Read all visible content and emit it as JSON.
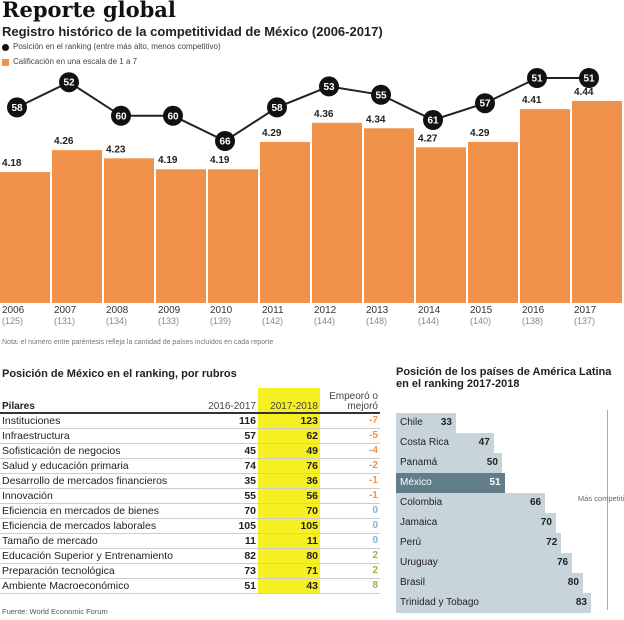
{
  "title": "Reporte global",
  "subtitle": "Registro histórico de la competitividad de México (2006-2017)",
  "legend": {
    "line": "Posición en el ranking (entre más alto, menos competitivo)",
    "bar": "Calificación en una escala de 1 a 7"
  },
  "note": "Nota: el número entre paréntesis refleja la cantidad de países incluidos en cada reporte",
  "colors": {
    "bar": "#f0924a",
    "line": "#111111",
    "highlight": "#f6f022",
    "mexico": "#617d89",
    "country_bar": "#c7d4db",
    "worse": "#f0924a",
    "same": "#8ab0c8",
    "better": "#8dbb4a"
  },
  "chart_data": [
    {
      "type": "bar+line",
      "categories": [
        "2006",
        "2007",
        "2008",
        "2009",
        "2010",
        "2011",
        "2012",
        "2013",
        "2014",
        "2015",
        "2016",
        "2017"
      ],
      "countries_included": [
        "(125)",
        "(131)",
        "(134)",
        "(133)",
        "(139)",
        "(142)",
        "(144)",
        "(148)",
        "(144)",
        "(140)",
        "(138)",
        "(137)"
      ],
      "series": [
        {
          "name": "Calificación en una escala de 1 a 7",
          "type": "bar",
          "values": [
            4.18,
            4.26,
            4.23,
            4.19,
            4.19,
            4.29,
            4.36,
            4.34,
            4.27,
            4.29,
            4.41,
            4.44
          ]
        },
        {
          "name": "Posición en el ranking (entre más alto, menos competitivo)",
          "type": "line",
          "values": [
            58,
            52,
            60,
            60,
            66,
            58,
            53,
            55,
            61,
            57,
            51,
            51
          ]
        }
      ]
    },
    {
      "type": "bar",
      "title": "Posición de los países de América Latina en el ranking 2017-2018",
      "axis_label": "Más competitivo",
      "categories": [
        "Chile",
        "Costa Rica",
        "Panamá",
        "México",
        "Colombia",
        "Jamaica",
        "Perú",
        "Uruguay",
        "Brasil",
        "Trinidad y Tobago"
      ],
      "values": [
        33,
        47,
        50,
        51,
        66,
        70,
        72,
        76,
        80,
        83
      ],
      "highlight": "México"
    }
  ],
  "table": {
    "title": "Posición de México en el ranking, por rubros",
    "headers": [
      "Pilares",
      "2016-2017",
      "2017-2018",
      "Empeoró o mejoró"
    ],
    "rows": [
      [
        "Instituciones",
        "116",
        "123",
        "-7"
      ],
      [
        "Infraestructura",
        "57",
        "62",
        "-5"
      ],
      [
        "Sofisticación de negocios",
        "45",
        "49",
        "-4"
      ],
      [
        "Salud y educación primaria",
        "74",
        "76",
        "-2"
      ],
      [
        "Desarrollo de mercados financieros",
        "35",
        "36",
        "-1"
      ],
      [
        "Innovación",
        "55",
        "56",
        "-1"
      ],
      [
        "Eficiencia en mercados de bienes",
        "70",
        "70",
        "0"
      ],
      [
        "Eficiencia de mercados laborales",
        "105",
        "105",
        "0"
      ],
      [
        "Tamaño de mercado",
        "11",
        "11",
        "0"
      ],
      [
        "Educación Superior y Entrenamiento",
        "82",
        "80",
        "2"
      ],
      [
        "Preparación tecnológica",
        "73",
        "71",
        "2"
      ],
      [
        "Ambiente Macroeconómico",
        "51",
        "43",
        "8"
      ]
    ]
  },
  "source": "Fuente: World Economic Forum"
}
